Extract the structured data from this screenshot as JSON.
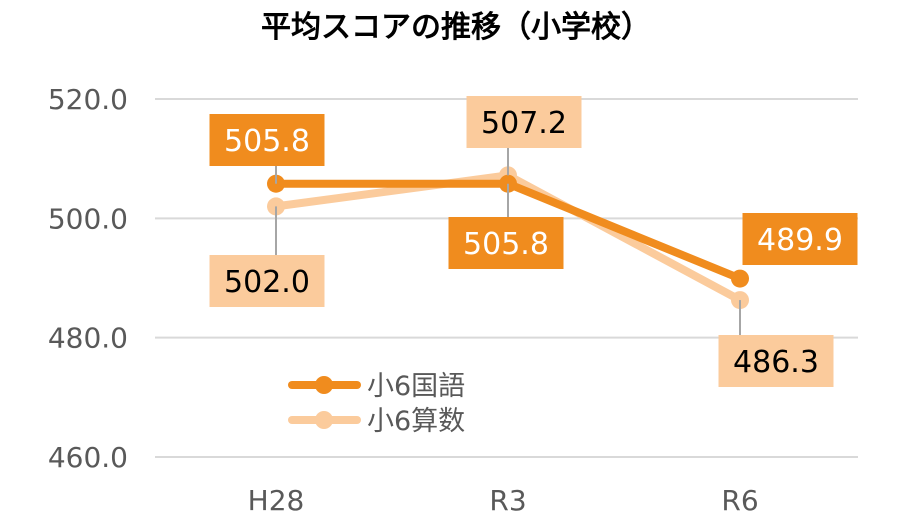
{
  "chart_data": {
    "type": "line",
    "title": "平均スコアの推移（小学校）",
    "categories": [
      "H28",
      "R3",
      "R6"
    ],
    "ylim": [
      460,
      520
    ],
    "yticks": [
      "460.0",
      "480.0",
      "500.0",
      "520.0"
    ],
    "grid": true,
    "legend_position": "bottom-left",
    "series": [
      {
        "name": "小6国語",
        "values": [
          505.8,
          505.8,
          489.9
        ],
        "labels": [
          "505.8",
          "505.8",
          "489.9"
        ],
        "color": "#F08C1E"
      },
      {
        "name": "小6算数",
        "values": [
          502.0,
          507.2,
          486.3
        ],
        "labels": [
          "502.0",
          "507.2",
          "486.3"
        ],
        "color": "#FBCB9C"
      }
    ]
  }
}
